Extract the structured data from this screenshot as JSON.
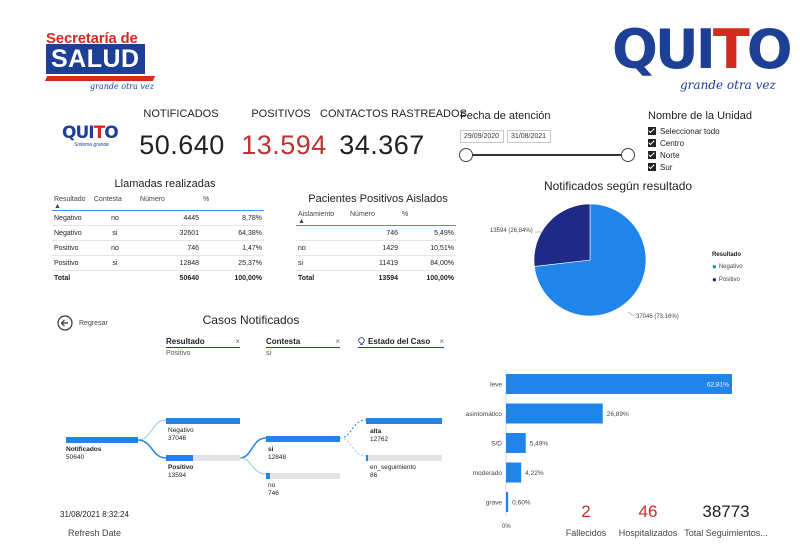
{
  "branding": {
    "salud_line1": "Secretaría de",
    "salud_line2": "SALUD",
    "salud_tag": "grande otra vez",
    "quito_word_a": "QUI",
    "quito_word_b": "T",
    "quito_word_c": "O",
    "quito_tag": "grande otra vez",
    "quito_small_tag": "Sistema grande"
  },
  "kpis": {
    "notificados_label": "NOTIFICADOS",
    "notificados_value": "50.640",
    "positivos_label": "POSITIVOS",
    "positivos_value": "13.594",
    "contactos_label": "CONTACTOS RASTREADOS",
    "contactos_value": "34.367"
  },
  "date_filter": {
    "title": "Fecha de atención",
    "start": "29/09/2020",
    "end": "31/08/2021"
  },
  "unit_filter": {
    "title": "Nombre de la Unidad",
    "items": [
      "Seleccionar todo",
      "Centro",
      "Norte",
      "Sur"
    ]
  },
  "calls_table": {
    "title": "Llamadas realizadas",
    "headers": [
      "Resultado",
      "Contesta",
      "Número",
      "%"
    ],
    "rows": [
      [
        "Negativo",
        "no",
        "4445",
        "8,78%"
      ],
      [
        "Negativo",
        "si",
        "32601",
        "64,38%"
      ],
      [
        "Positivo",
        "no",
        "746",
        "1,47%"
      ],
      [
        "Positivo",
        "si",
        "12848",
        "25,37%"
      ]
    ],
    "total": [
      "Total",
      "",
      "50640",
      "100,00%"
    ]
  },
  "isolated_table": {
    "title": "Pacientes Positivos Aislados",
    "headers": [
      "Aislamiento",
      "Número",
      "%"
    ],
    "rows": [
      [
        "",
        "746",
        "5,49%"
      ],
      [
        "no",
        "1429",
        "10,51%"
      ],
      [
        "si",
        "11419",
        "84,00%"
      ]
    ],
    "total": [
      "Total",
      "13594",
      "100,00%"
    ]
  },
  "pie": {
    "title": "Notificados según resultado",
    "legend_title": "Resultado",
    "label_pos": "13594 (26,84%)",
    "label_neg": "37046 (73,16%)"
  },
  "decomp": {
    "title": "Casos Notificados",
    "back_label": "Regresar",
    "filters": [
      {
        "label": "Resultado",
        "value": "Positivo"
      },
      {
        "label": "Contesta",
        "value": "si"
      },
      {
        "label": "Estado del Caso",
        "value": ""
      }
    ],
    "root": {
      "label": "Notificados",
      "value": "50640"
    },
    "level1": [
      {
        "label": "Negativo",
        "value": "37046"
      },
      {
        "label": "Positivo",
        "value": "13594"
      }
    ],
    "level2": [
      {
        "label": "si",
        "value": "12848"
      },
      {
        "label": "no",
        "value": "746"
      }
    ],
    "level3": [
      {
        "label": "alta",
        "value": "12762"
      },
      {
        "label": "en_seguimiento",
        "value": "86"
      }
    ],
    "close_icon": "×"
  },
  "refresh": {
    "datetime": "31/08/2021 8:32:24",
    "label": "Refresh Date"
  },
  "bottom_kpis": {
    "fallecidos_value": "2",
    "fallecidos_label": "Fallecidos",
    "hospitalizados_value": "46",
    "hospitalizados_label": "Hospitalizados",
    "seguimientos_value": "38773",
    "seguimientos_label": "Total Seguimientos..."
  },
  "chart_data": [
    {
      "type": "pie",
      "title": "Notificados según resultado",
      "legend_title": "Resultado",
      "categories": [
        "Negativo",
        "Positivo"
      ],
      "values": [
        37046,
        13594
      ],
      "percent": [
        73.16,
        26.84
      ],
      "colors": [
        "#1f85ea",
        "#1e2a86"
      ],
      "legend_position": "right"
    },
    {
      "type": "bar",
      "orientation": "horizontal",
      "categories": [
        "leve",
        "asintomático",
        "S/D",
        "moderado",
        "grave"
      ],
      "values": [
        62.81,
        26.89,
        5.49,
        4.22,
        0.6
      ],
      "value_labels": [
        "62,81%",
        "26,89%",
        "5,49%",
        "4,22%",
        "0,60%"
      ],
      "axis_min_label": "0%",
      "xlim": [
        0,
        62.81
      ],
      "color": "#1f85ea"
    }
  ],
  "colors": {
    "accent_blue": "#1f85ea",
    "dark_blue": "#1e2a86",
    "positive_red": "#c0312f",
    "brand_blue": "#1d3f95",
    "brand_red": "#d42a20"
  }
}
